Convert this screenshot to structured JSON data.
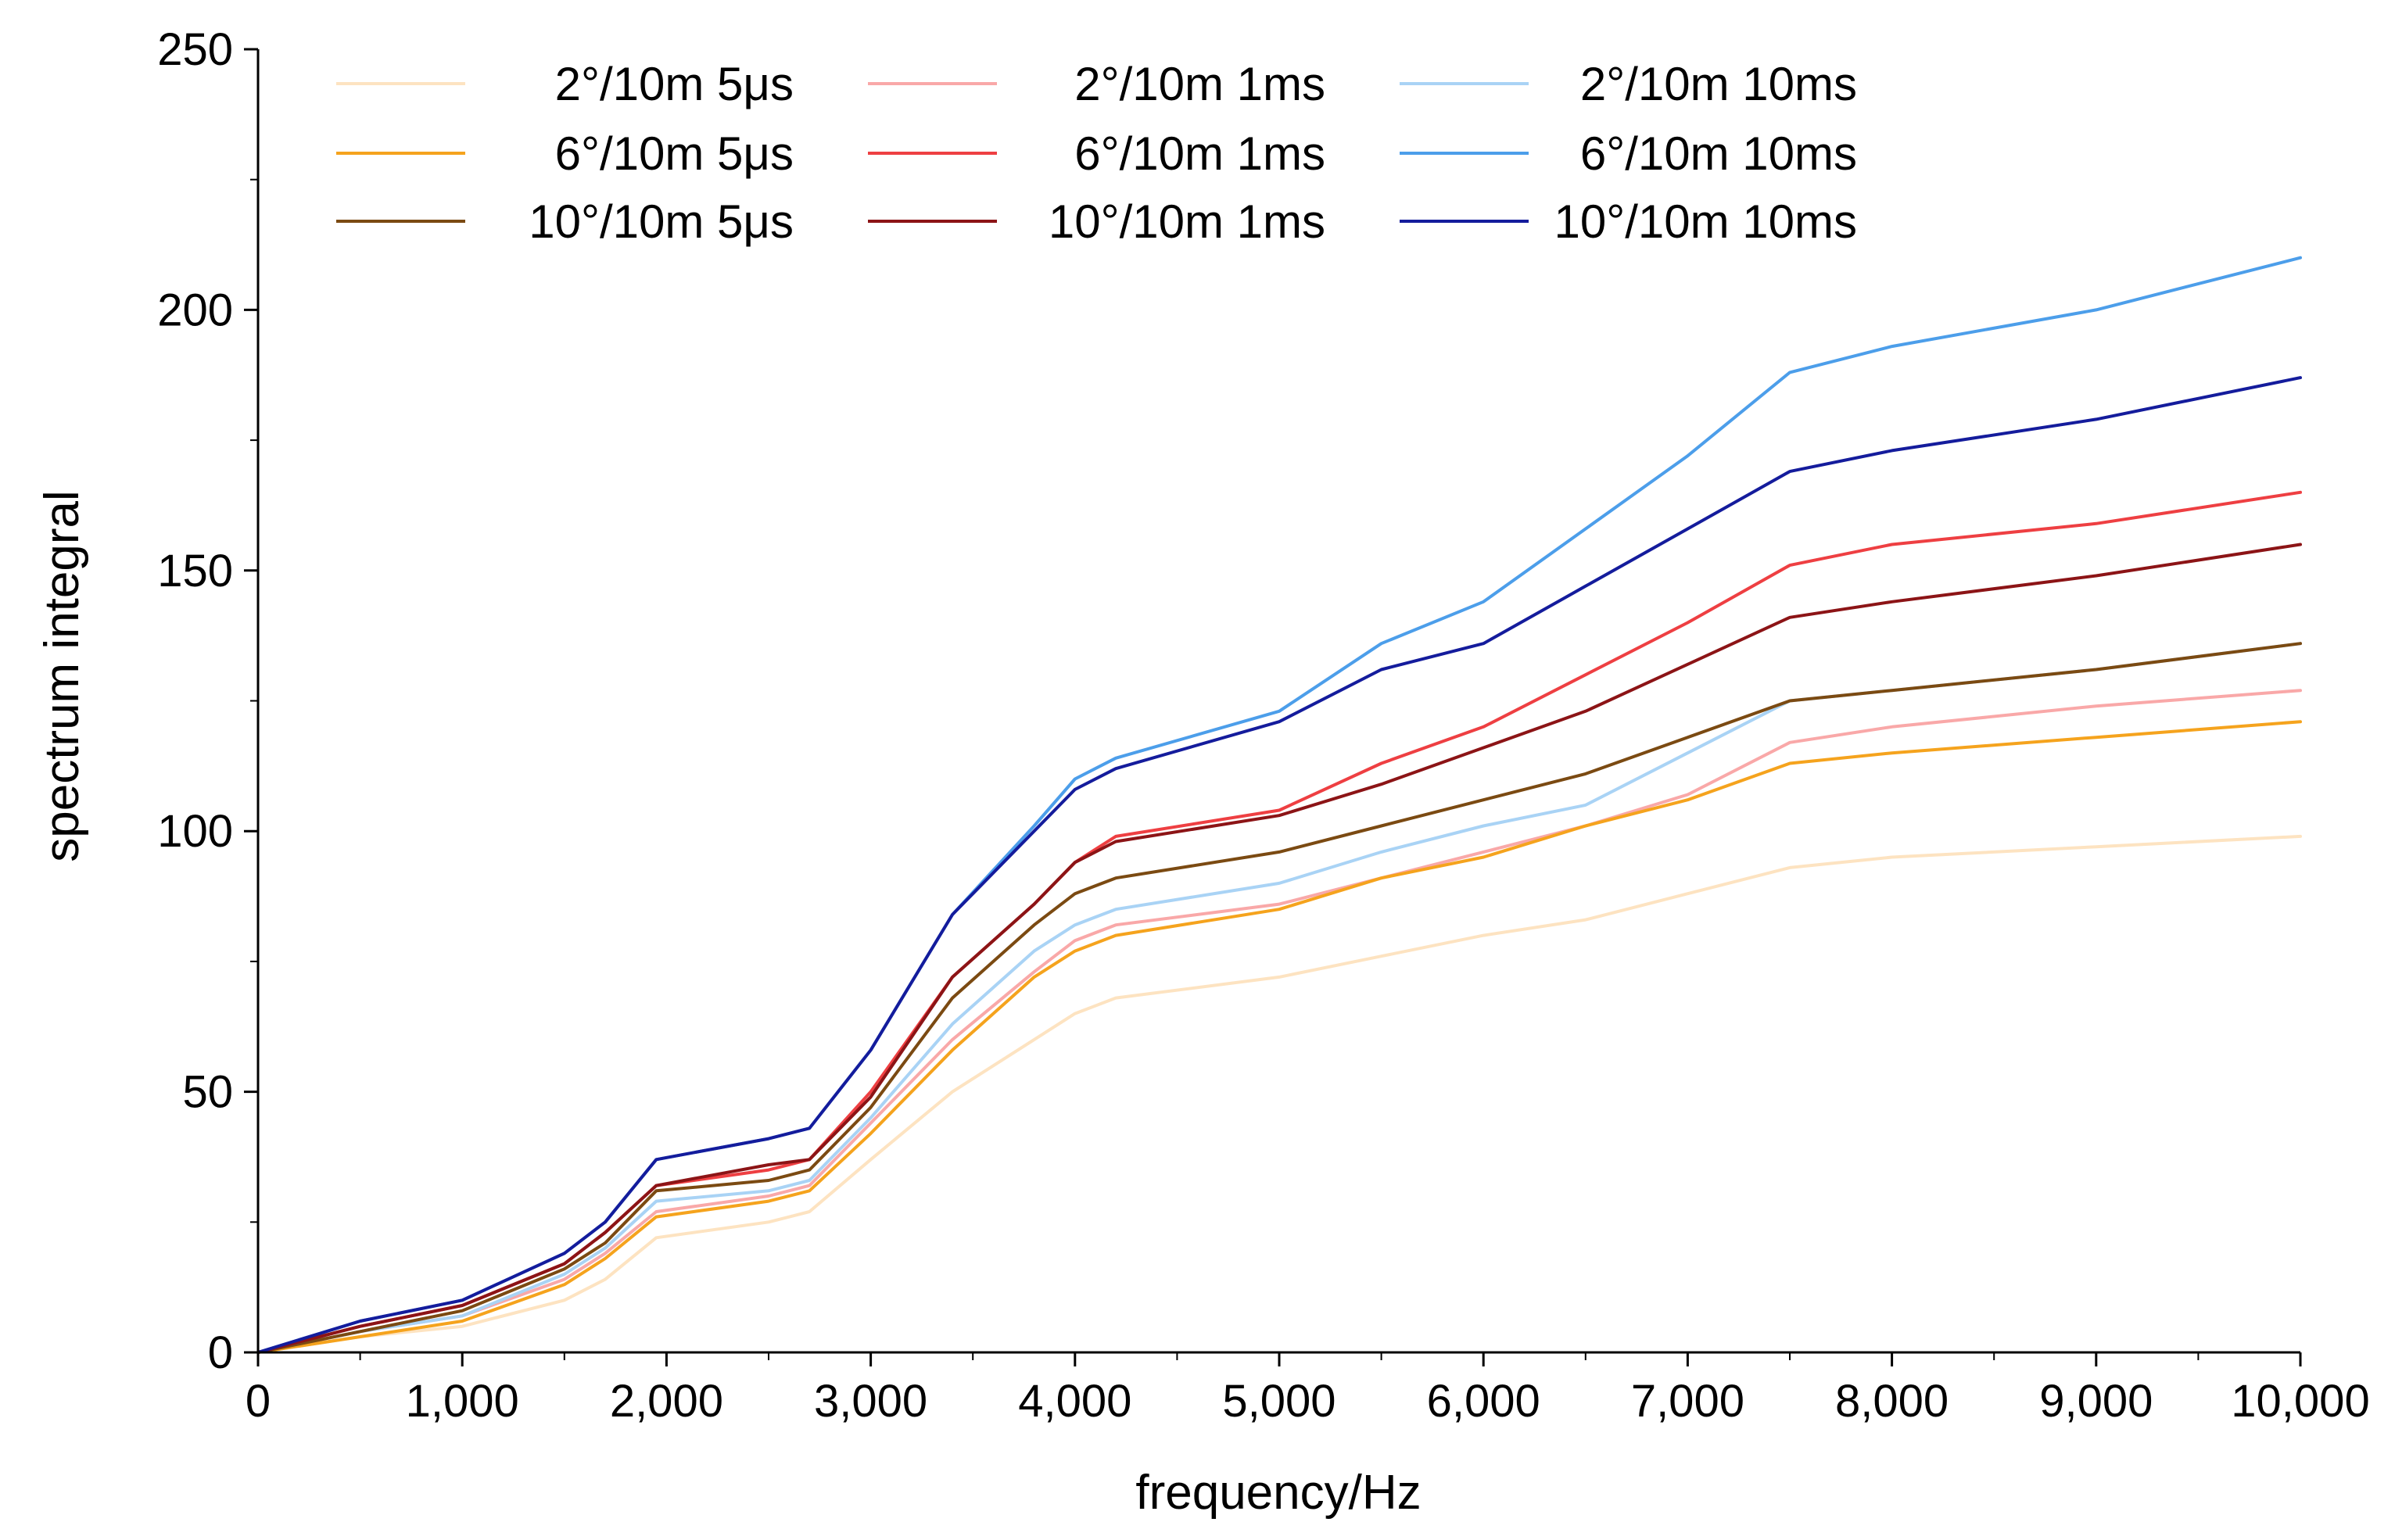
{
  "chart_data": {
    "type": "line",
    "title": "",
    "xlabel": "frequency/Hz",
    "ylabel": "spectrum integral",
    "xlim": [
      0,
      10000
    ],
    "ylim": [
      0,
      250
    ],
    "xticks": [
      0,
      1000,
      2000,
      3000,
      4000,
      5000,
      6000,
      7000,
      8000,
      9000,
      10000
    ],
    "xtick_labels": [
      "0",
      "1,000",
      "2,000",
      "3,000",
      "4,000",
      "5,000",
      "6,000",
      "7,000",
      "8,000",
      "9,000",
      "10,000"
    ],
    "yticks": [
      0,
      50,
      100,
      150,
      200,
      250
    ],
    "ytick_labels": [
      "0",
      "50",
      "100",
      "150",
      "200",
      "250"
    ],
    "grid": false,
    "legend_position": "top",
    "x": [
      0,
      500,
      1000,
      1500,
      1700,
      1950,
      2500,
      2700,
      3000,
      3400,
      3800,
      4000,
      4200,
      5000,
      5500,
      6000,
      6500,
      7000,
      7500,
      8000,
      9000,
      10000
    ],
    "series": [
      {
        "name": "2°/10m 5μs",
        "color": "#FDE3C1",
        "values": [
          0,
          3,
          5,
          10,
          14,
          22,
          25,
          27,
          37,
          50,
          60,
          65,
          68,
          72,
          76,
          80,
          83,
          88,
          93,
          95,
          97,
          99
        ]
      },
      {
        "name": "2°/10m 1ms",
        "color": "#F9A8A8",
        "values": [
          0,
          4,
          7,
          14,
          19,
          27,
          30,
          32,
          44,
          60,
          73,
          79,
          82,
          86,
          91,
          96,
          101,
          107,
          117,
          120,
          124,
          127
        ]
      },
      {
        "name": "2°/10m 10ms",
        "color": "#A9D3F5",
        "values": [
          0,
          4,
          7,
          15,
          20,
          29,
          31,
          33,
          45,
          63,
          77,
          82,
          85,
          90,
          96,
          101,
          105,
          115,
          125,
          127,
          131,
          136
        ]
      },
      {
        "name": "6°/10m 5μs",
        "color": "#F5A31D",
        "values": [
          0,
          3,
          6,
          13,
          18,
          26,
          29,
          31,
          42,
          58,
          72,
          77,
          80,
          85,
          91,
          95,
          101,
          106,
          113,
          115,
          118,
          121
        ]
      },
      {
        "name": "6°/10m 1ms",
        "color": "#EE3F42",
        "values": [
          0,
          5,
          9,
          17,
          23,
          32,
          35,
          37,
          50,
          72,
          86,
          94,
          99,
          104,
          113,
          120,
          130,
          140,
          151,
          155,
          159,
          165
        ]
      },
      {
        "name": "6°/10m 10ms",
        "color": "#4C9EEA",
        "values": [
          0,
          6,
          10,
          19,
          25,
          37,
          41,
          43,
          58,
          84,
          101,
          110,
          114,
          123,
          136,
          144,
          158,
          172,
          188,
          193,
          200,
          210
        ]
      },
      {
        "name": "10°/10m 5μs",
        "color": "#7B4A12",
        "values": [
          0,
          4,
          8,
          16,
          21,
          31,
          33,
          35,
          47,
          68,
          82,
          88,
          91,
          96,
          101,
          106,
          111,
          118,
          125,
          127,
          131,
          136
        ]
      },
      {
        "name": "10°/10m 1ms",
        "color": "#8C1416",
        "values": [
          0,
          5,
          9,
          17,
          23,
          32,
          36,
          37,
          49,
          72,
          86,
          94,
          98,
          103,
          109,
          116,
          123,
          132,
          141,
          144,
          149,
          155
        ]
      },
      {
        "name": "10°/10m 10ms",
        "color": "#141C9C",
        "values": [
          0,
          6,
          10,
          19,
          25,
          37,
          41,
          43,
          58,
          84,
          100,
          108,
          112,
          121,
          131,
          136,
          147,
          158,
          169,
          173,
          179,
          187
        ]
      }
    ]
  }
}
